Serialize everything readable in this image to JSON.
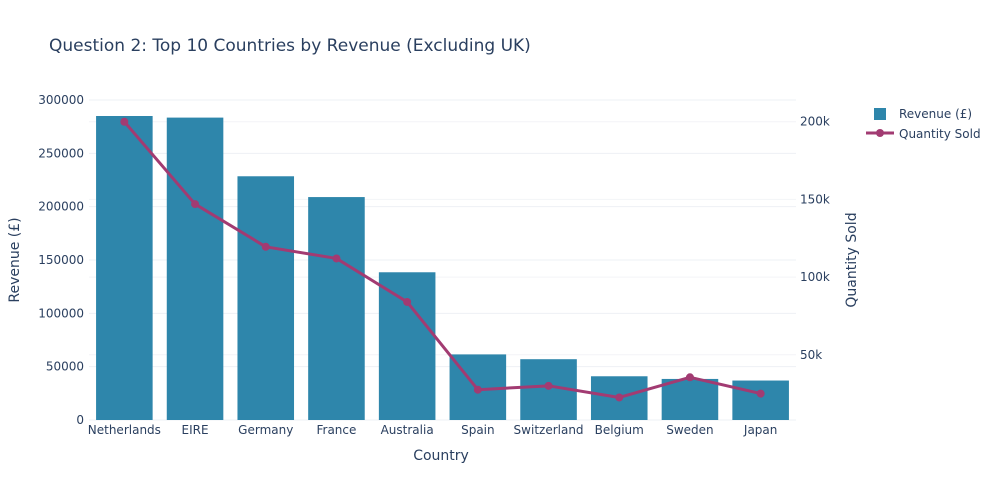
{
  "chart_data": {
    "type": "bar",
    "title": "Question 2: Top 10 Countries by Revenue (Excluding UK)",
    "xlabel": "Country",
    "ylabel": "Revenue (£)",
    "y2label": "Quantity Sold",
    "categories": [
      "Netherlands",
      "EIRE",
      "Germany",
      "France",
      "Australia",
      "Spain",
      "Switzerland",
      "Belgium",
      "Sweden",
      "Japan"
    ],
    "ylim": [
      0,
      300000
    ],
    "y_ticks": [
      0,
      50000,
      100000,
      150000,
      200000,
      250000,
      300000
    ],
    "y_tick_labels": [
      "0",
      "50000",
      "100000",
      "150000",
      "200000",
      "250000",
      "300000"
    ],
    "y2lim": [
      8000,
      214000
    ],
    "y2_ticks": [
      50000,
      100000,
      150000,
      200000
    ],
    "y2_tick_labels": [
      "50k",
      "100k",
      "150k",
      "200k"
    ],
    "grid": true,
    "legend_position": "top-right",
    "series": [
      {
        "name": "Revenue (£)",
        "type": "bar",
        "axis": "left",
        "color": "#2e86ab",
        "values": [
          285000,
          283500,
          228500,
          209000,
          138500,
          61500,
          57000,
          41000,
          38500,
          37000
        ]
      },
      {
        "name": "Quantity Sold",
        "type": "line",
        "axis": "right",
        "color": "#a23b72",
        "values": [
          200000,
          147000,
          119500,
          112000,
          84000,
          27500,
          30000,
          22500,
          35500,
          25000
        ]
      }
    ]
  }
}
